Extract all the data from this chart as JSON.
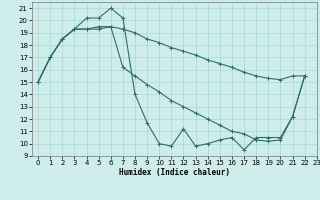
{
  "xlabel": "Humidex (Indice chaleur)",
  "background_color": "#ceecea",
  "line_color": "#2d6e64",
  "grid_color": "#a8d8d4",
  "xlim": [
    -0.5,
    23
  ],
  "ylim": [
    9,
    21.5
  ],
  "xticks": [
    0,
    1,
    2,
    3,
    4,
    5,
    6,
    7,
    8,
    9,
    10,
    11,
    12,
    13,
    14,
    15,
    16,
    17,
    18,
    19,
    20,
    21,
    22,
    23
  ],
  "yticks": [
    9,
    10,
    11,
    12,
    13,
    14,
    15,
    16,
    17,
    18,
    19,
    20,
    21
  ],
  "series": [
    {
      "x": [
        0,
        1,
        2,
        3,
        4,
        5,
        6,
        7,
        8,
        9,
        10,
        11,
        12,
        13,
        14,
        15,
        16,
        17,
        18,
        19,
        20,
        21,
        22
      ],
      "y": [
        15,
        17,
        18.5,
        19.3,
        20.2,
        20.2,
        21.0,
        20.2,
        14.0,
        11.7,
        10.0,
        9.8,
        11.2,
        9.8,
        10.0,
        10.3,
        10.5,
        9.5,
        10.5,
        10.5,
        10.5,
        12.2,
        15.5
      ]
    },
    {
      "x": [
        0,
        1,
        2,
        3,
        4,
        5,
        6,
        7,
        8,
        9,
        10,
        11,
        12,
        13,
        14,
        15,
        16,
        17,
        18,
        19,
        20,
        21,
        22
      ],
      "y": [
        15,
        17,
        18.5,
        19.3,
        19.3,
        19.5,
        19.5,
        19.3,
        19.0,
        18.5,
        18.2,
        17.8,
        17.5,
        17.2,
        16.8,
        16.5,
        16.2,
        15.8,
        15.5,
        15.3,
        15.2,
        15.5,
        15.5
      ]
    },
    {
      "x": [
        0,
        1,
        2,
        3,
        4,
        5,
        6,
        7,
        8,
        9,
        10,
        11,
        12,
        13,
        14,
        15,
        16,
        17,
        18,
        19,
        20,
        21,
        22
      ],
      "y": [
        15,
        17,
        18.5,
        19.3,
        19.3,
        19.3,
        19.5,
        16.2,
        15.5,
        14.8,
        14.2,
        13.5,
        13.0,
        12.5,
        12.0,
        11.5,
        11.0,
        10.8,
        10.3,
        10.2,
        10.3,
        12.2,
        15.5
      ]
    }
  ]
}
